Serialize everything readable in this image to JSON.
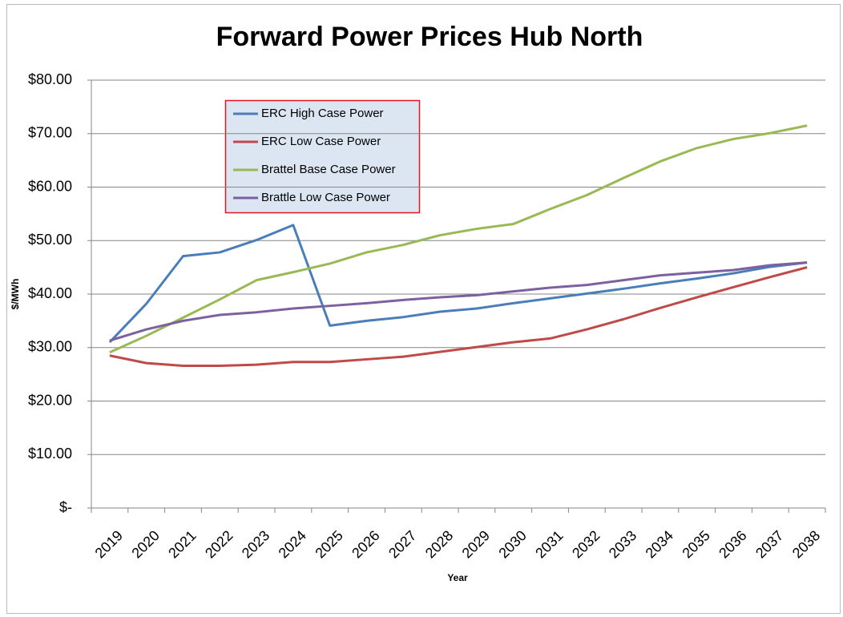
{
  "chart_data": {
    "type": "line",
    "title": "Forward Power Prices Hub North",
    "x_label": "Year",
    "y_label": "$/MWh",
    "categories": [
      "2019",
      "2020",
      "2021",
      "2022",
      "2023",
      "2024",
      "2025",
      "2026",
      "2027",
      "2028",
      "2029",
      "2030",
      "2031",
      "2032",
      "2033",
      "2034",
      "2035",
      "2036",
      "2037",
      "2038"
    ],
    "series": [
      {
        "name": "ERC High Case Power",
        "color": "#4a7ebb",
        "values": [
          31.0,
          38.2,
          47.1,
          47.8,
          50.1,
          52.9,
          34.1,
          35.0,
          35.7,
          36.7,
          37.3,
          38.3,
          39.2,
          40.1,
          41.0,
          42.0,
          42.9,
          43.9,
          45.1,
          45.9
        ]
      },
      {
        "name": "ERC Low Case Power",
        "color": "#be4b48",
        "values": [
          28.5,
          27.1,
          26.6,
          26.6,
          26.8,
          27.3,
          27.3,
          27.8,
          28.3,
          29.2,
          30.1,
          31.0,
          31.7,
          33.4,
          35.3,
          37.4,
          39.4,
          41.3,
          43.2,
          45.0
        ]
      },
      {
        "name": "Brattel Base Case Power",
        "color": "#98b954",
        "values": [
          29.1,
          32.2,
          35.6,
          39.0,
          42.6,
          44.1,
          45.7,
          47.8,
          49.2,
          51.0,
          52.2,
          53.1,
          55.9,
          58.5,
          61.7,
          64.8,
          67.3,
          69.0,
          70.1,
          71.5
        ]
      },
      {
        "name": "Brattle Low Case Power",
        "color": "#7d60a0",
        "values": [
          31.3,
          33.4,
          35.0,
          36.1,
          36.6,
          37.3,
          37.8,
          38.3,
          38.9,
          39.4,
          39.8,
          40.5,
          41.2,
          41.7,
          42.6,
          43.5,
          44.0,
          44.5,
          45.4,
          45.9
        ]
      }
    ],
    "ylim": [
      0,
      80
    ],
    "yticks": [
      {
        "value": 0,
        "label": "$-"
      },
      {
        "value": 10,
        "label": "$10.00"
      },
      {
        "value": 20,
        "label": "$20.00"
      },
      {
        "value": 30,
        "label": "$30.00"
      },
      {
        "value": 40,
        "label": "$40.00"
      },
      {
        "value": 50,
        "label": "$50.00"
      },
      {
        "value": 60,
        "label": "$60.00"
      },
      {
        "value": 70,
        "label": "$70.00"
      },
      {
        "value": 80,
        "label": "$80.00"
      }
    ],
    "grid": true
  }
}
